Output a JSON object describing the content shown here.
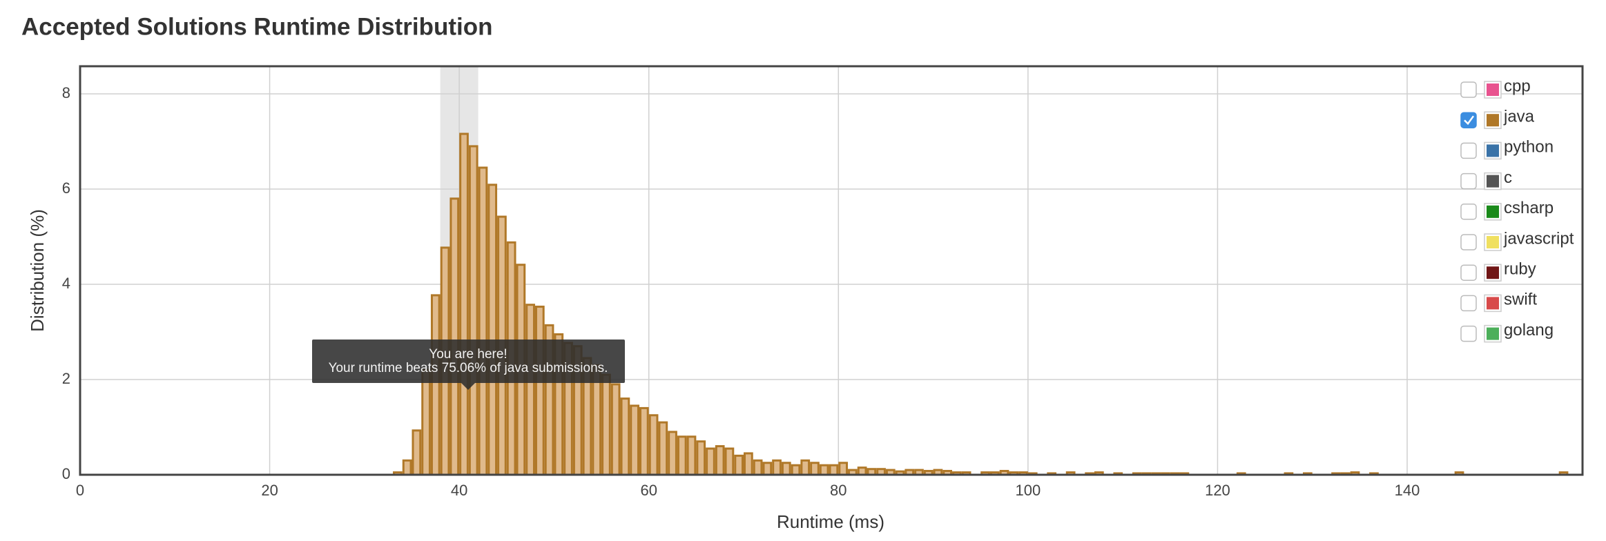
{
  "chart_data": {
    "type": "histogram",
    "title": "Accepted Solutions Runtime Distribution",
    "x_label": "Runtime (ms)",
    "y_label": "Distribution (%)",
    "bins": [
      33,
      34,
      35,
      36,
      37,
      38,
      39,
      40,
      41,
      42,
      43,
      44,
      45,
      46,
      47,
      48,
      49,
      50,
      51,
      52,
      53,
      54,
      55,
      56,
      57,
      58,
      59,
      60,
      61,
      62,
      63,
      64,
      65,
      66,
      67,
      68,
      69,
      70,
      71,
      72,
      73,
      74,
      75,
      76,
      77,
      78,
      79,
      80,
      81,
      82,
      83,
      84,
      85,
      86,
      87,
      88,
      89,
      90,
      91,
      92,
      93,
      94,
      95,
      96,
      97,
      98,
      99,
      100,
      101,
      102,
      103,
      104,
      105,
      106,
      107,
      108,
      109,
      110,
      111,
      112,
      113,
      114,
      115,
      116,
      117,
      118,
      119,
      120,
      121,
      122,
      123,
      124,
      125,
      126,
      127,
      128,
      129,
      130,
      131,
      132,
      133,
      134,
      135,
      136,
      137,
      138,
      139,
      140,
      141,
      142,
      143,
      144,
      145,
      146,
      147,
      148,
      149,
      150,
      151,
      152,
      153,
      154,
      155,
      156,
      157
    ],
    "values": [
      0.05,
      0.3,
      0.93,
      2.2,
      3.77,
      4.77,
      5.8,
      7.16,
      6.9,
      6.45,
      6.09,
      5.42,
      4.88,
      4.41,
      3.57,
      3.53,
      3.14,
      2.95,
      2.77,
      2.7,
      2.45,
      2.3,
      2.1,
      1.9,
      1.6,
      1.45,
      1.4,
      1.25,
      1.1,
      0.9,
      0.8,
      0.8,
      0.7,
      0.55,
      0.6,
      0.55,
      0.4,
      0.45,
      0.3,
      0.25,
      0.3,
      0.25,
      0.2,
      0.3,
      0.25,
      0.2,
      0.2,
      0.25,
      0.1,
      0.15,
      0.12,
      0.12,
      0.1,
      0.07,
      0.1,
      0.1,
      0.08,
      0.1,
      0.08,
      0.05,
      0.05,
      0,
      0.05,
      0.05,
      0.08,
      0.05,
      0.05,
      0.03,
      0,
      0.03,
      0,
      0.05,
      0,
      0.03,
      0.05,
      0,
      0.03,
      0,
      0.03,
      0.03,
      0.03,
      0.03,
      0.03,
      0.03,
      0,
      0,
      0,
      0,
      0,
      0.03,
      0,
      0,
      0,
      0,
      0.03,
      0,
      0.03,
      0,
      0,
      0.03,
      0.03,
      0.05,
      0,
      0.03,
      0,
      0,
      0,
      0,
      0,
      0,
      0,
      0,
      0.05,
      0,
      0,
      0,
      0,
      0,
      0,
      0,
      0,
      0,
      0,
      0.05
    ],
    "color": "#b07828",
    "fill": "#e0ba8c",
    "highlight_range": [
      38,
      42
    ],
    "xlim": [
      0,
      158.5
    ],
    "ylim": [
      0,
      8.58
    ],
    "xticks": [
      0,
      20,
      40,
      60,
      80,
      100,
      120,
      140
    ],
    "yticks": [
      0,
      2,
      4,
      6,
      8
    ],
    "grid": true,
    "tooltip": {
      "title": "You are here!",
      "text": "Your runtime beats 75.06% of java submissions."
    },
    "legend_position": "upper right",
    "legend": [
      {
        "name": "cpp",
        "color": "#e8538f",
        "checked": false
      },
      {
        "name": "java",
        "color": "#b07828",
        "checked": true
      },
      {
        "name": "python",
        "color": "#3a73a8",
        "checked": false
      },
      {
        "name": "c",
        "color": "#555555",
        "checked": false
      },
      {
        "name": "csharp",
        "color": "#1a8a1a",
        "checked": false
      },
      {
        "name": "javascript",
        "color": "#f0e060",
        "checked": false
      },
      {
        "name": "ruby",
        "color": "#701515",
        "checked": false
      },
      {
        "name": "swift",
        "color": "#d84a4a",
        "checked": false
      },
      {
        "name": "golang",
        "color": "#4caf5a",
        "checked": false
      }
    ]
  }
}
